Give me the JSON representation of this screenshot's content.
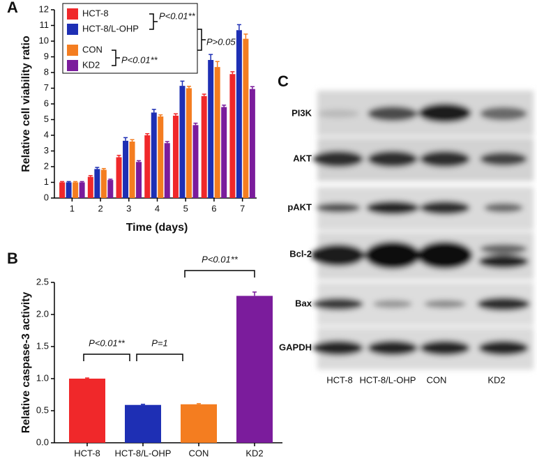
{
  "chart_data": [
    {
      "type": "bar",
      "panel_label": "A",
      "ylabel": "Relative cell viability ratio",
      "xlabel": "Time (days)",
      "categories": [
        "1",
        "2",
        "3",
        "4",
        "5",
        "6",
        "7"
      ],
      "series": [
        {
          "name": "HCT-8",
          "color": "#f0282a",
          "values": [
            1.0,
            1.35,
            2.6,
            4.0,
            5.25,
            6.5,
            7.9
          ],
          "errors": [
            0.05,
            0.08,
            0.12,
            0.1,
            0.12,
            0.12,
            0.15
          ]
        },
        {
          "name": "HCT-8/L-OHP",
          "color": "#1e2fb4",
          "values": [
            1.0,
            1.85,
            3.65,
            5.45,
            7.15,
            8.8,
            10.7
          ],
          "errors": [
            0.05,
            0.1,
            0.2,
            0.2,
            0.3,
            0.35,
            0.35
          ]
        },
        {
          "name": "CON",
          "color": "#f47d20",
          "values": [
            1.0,
            1.8,
            3.6,
            5.2,
            7.0,
            8.35,
            10.15
          ],
          "errors": [
            0.05,
            0.08,
            0.12,
            0.1,
            0.12,
            0.35,
            0.3
          ]
        },
        {
          "name": "KD2",
          "color": "#7b1c9c",
          "values": [
            1.0,
            1.15,
            2.3,
            3.5,
            4.65,
            5.8,
            6.95
          ],
          "errors": [
            0.05,
            0.05,
            0.08,
            0.1,
            0.12,
            0.12,
            0.15
          ]
        }
      ],
      "ylim": [
        0,
        12
      ],
      "yticks": [
        0,
        1,
        2,
        3,
        4,
        5,
        6,
        7,
        8,
        9,
        10,
        11,
        12
      ],
      "annotations": [
        "P<0.01**",
        "P>0.05",
        "P<0.01**"
      ]
    },
    {
      "type": "bar",
      "panel_label": "B",
      "ylabel": "Relative caspase-3 activity",
      "categories": [
        "HCT-8",
        "HCT-8/L-OHP",
        "CON",
        "KD2"
      ],
      "values": [
        1.0,
        0.59,
        0.6,
        2.29
      ],
      "errors": [
        0.01,
        0.01,
        0.01,
        0.06
      ],
      "colors": [
        "#f0282a",
        "#1e2fb4",
        "#f47d20",
        "#7b1c9c"
      ],
      "ylim": [
        0,
        2.5
      ],
      "yticks": [
        {
          "value": 0,
          "label": "0.0"
        },
        0.5,
        {
          "value": 1,
          "label": "1.0"
        },
        1.5,
        {
          "value": 2,
          "label": "2.0"
        },
        2.5
      ],
      "annotations": [
        "P<0.01**",
        "P=1",
        "P<0.01**"
      ]
    }
  ],
  "blot": {
    "panel_label": "C",
    "rows": [
      "PI3K",
      "AKT",
      "pAKT",
      "Bcl-2",
      "Bax",
      "GAPDH"
    ],
    "columns": [
      "HCT-8",
      "HCT-8/L-OHP",
      "CON",
      "KD2"
    ]
  }
}
